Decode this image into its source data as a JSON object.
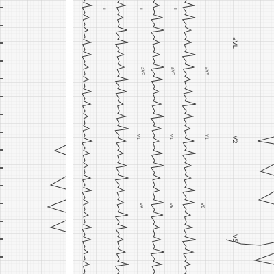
{
  "figure": {
    "left_strip": {
      "name": "left-ecg-strip"
    },
    "center_strip": {
      "name": "center-ecg-strip",
      "lead_labels": [
        {
          "text": "II",
          "name": "lead-label-ii-1"
        },
        {
          "text": "II",
          "name": "lead-label-ii-2"
        },
        {
          "text": "II",
          "name": "lead-label-ii-3"
        },
        {
          "text": "aVF",
          "name": "lead-label-avf-1"
        },
        {
          "text": "aVF",
          "name": "lead-label-avf-2"
        },
        {
          "text": "aVF",
          "name": "lead-label-avf-3"
        },
        {
          "text": "V1",
          "name": "lead-label-v1-1"
        },
        {
          "text": "V1",
          "name": "lead-label-v1-2"
        },
        {
          "text": "V1",
          "name": "lead-label-v1-3"
        },
        {
          "text": "V6",
          "name": "lead-label-v6-1"
        },
        {
          "text": "V6",
          "name": "lead-label-v6-2"
        },
        {
          "text": "V6",
          "name": "lead-label-v6-3"
        }
      ]
    },
    "right_strip": {
      "name": "right-ecg-strip",
      "lead_labels": [
        {
          "text": "aVL",
          "name": "lead-label-avl"
        },
        {
          "text": "V2",
          "name": "lead-label-v2"
        },
        {
          "text": "V5",
          "name": "lead-label-v5"
        }
      ]
    },
    "colors": {
      "paper": "#f7f7f7",
      "grid_minor": "#e4e4e4",
      "grid_major": "#c9c9c9",
      "trace": "#3a3a3a",
      "divider": "#ffffff"
    }
  }
}
